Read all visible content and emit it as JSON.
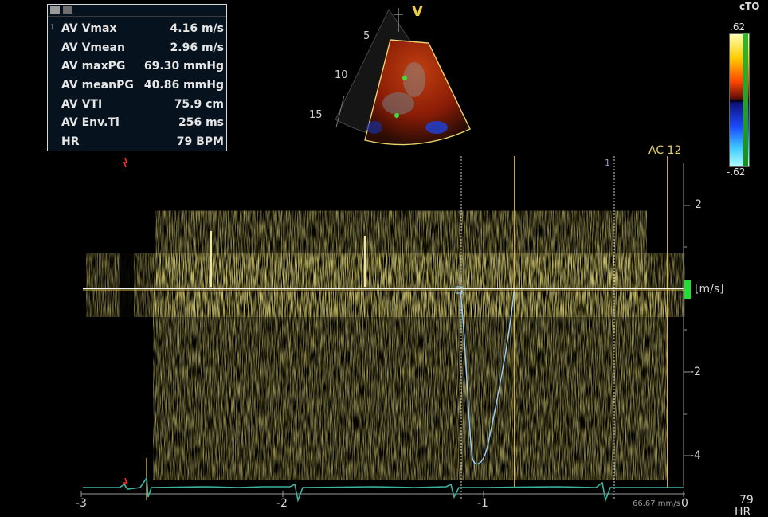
{
  "measurements": {
    "rows": [
      {
        "index": "1",
        "label": "AV Vmax",
        "value": "4.16 m/s"
      },
      {
        "index": "",
        "label": "AV Vmean",
        "value": "2.96 m/s"
      },
      {
        "index": "",
        "label": "AV maxPG",
        "value": "69.30 mmHg"
      },
      {
        "index": "",
        "label": "AV meanPG",
        "value": "40.86 mmHg"
      },
      {
        "index": "",
        "label": "AV VTI",
        "value": "75.9 cm"
      },
      {
        "index": "",
        "label": "AV Env.Ti",
        "value": "256 ms"
      },
      {
        "index": "",
        "label": "HR",
        "value": "79 BPM"
      }
    ]
  },
  "sector": {
    "marker": "V",
    "depth_labels": [
      "5",
      "10",
      "15"
    ]
  },
  "color_bar": {
    "top_label": "cTO",
    "max": ".62",
    "min": "-.62"
  },
  "spectrum": {
    "ac_label": "AC 12",
    "unit": "[m/s]",
    "y_ticks": [
      "2",
      "-2",
      "-4"
    ],
    "x_ticks": [
      "-3",
      "-2",
      "-1",
      "0"
    ],
    "sweep_speed": "66.67 mm/s",
    "cycle_marker": "1"
  },
  "footer": {
    "hr_value": "79",
    "hr_label": "HR"
  },
  "colors": {
    "doppler": "#e8d23a",
    "ecg": "#3fb3a0",
    "envelope": "#9ad0ff",
    "marker_line": "#f0d878"
  }
}
